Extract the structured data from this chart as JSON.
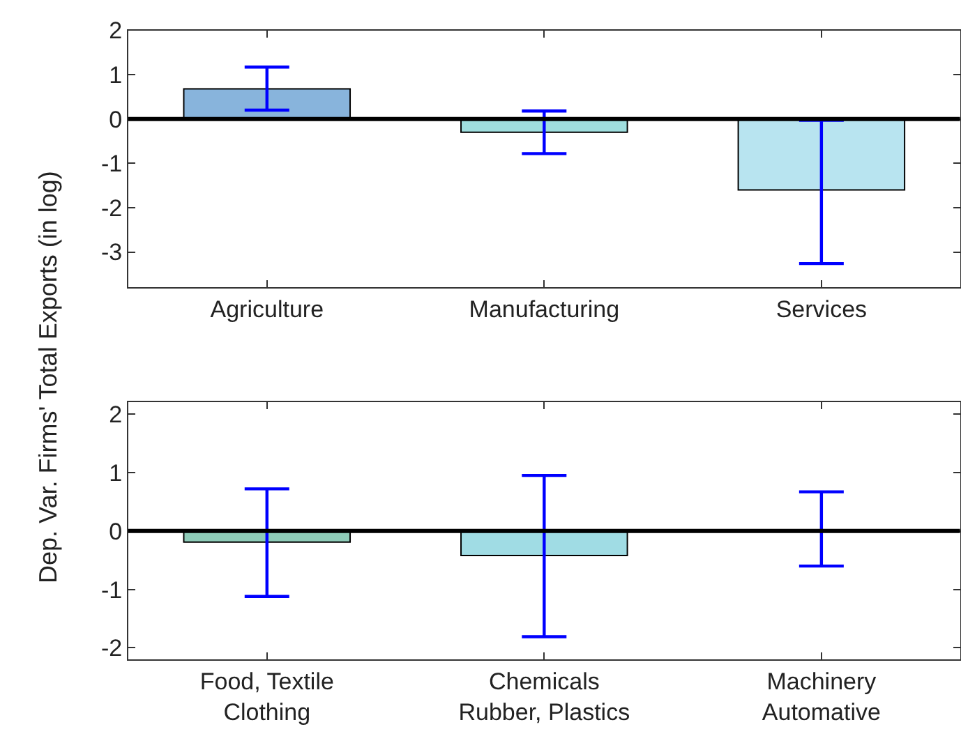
{
  "chart_data": [
    {
      "type": "bar",
      "ylabel": "Dep. Var. Firms' Total Exports (in log)",
      "categories": [
        "Agriculture",
        "Manufacturing",
        "Services"
      ],
      "values": [
        0.68,
        -0.3,
        -1.6
      ],
      "colors": [
        "#88b4dc",
        "#9fdede",
        "#b8e4f0"
      ],
      "errors": [
        [
          0.2,
          1.17
        ],
        [
          -0.78,
          0.18
        ],
        [
          -3.26,
          -0.03
        ]
      ],
      "ylim": [
        -3.8,
        2
      ],
      "yticks": [
        -3,
        -2,
        -1,
        0,
        1,
        2
      ],
      "ref_lines": [
        {
          "axis": "y",
          "value": 0,
          "color": "#000000"
        }
      ]
    },
    {
      "type": "bar",
      "categories": [
        "Food, Textile\nClothing",
        "Chemicals\nRubber, Plastics",
        "Machinery\nAutomative"
      ],
      "values": [
        -0.19,
        -0.42,
        0.01
      ],
      "colors": [
        "#8ecbb8",
        "#a0dce4",
        "#b8e4f0"
      ],
      "errors": [
        [
          -1.12,
          0.72
        ],
        [
          -1.81,
          0.95
        ],
        [
          -0.6,
          0.67
        ]
      ],
      "ylim": [
        -2.2,
        2.2
      ],
      "yticks": [
        -2,
        -1,
        0,
        1,
        2
      ],
      "ref_lines": [
        {
          "axis": "y",
          "value": 0,
          "color": "#000000"
        }
      ]
    }
  ]
}
